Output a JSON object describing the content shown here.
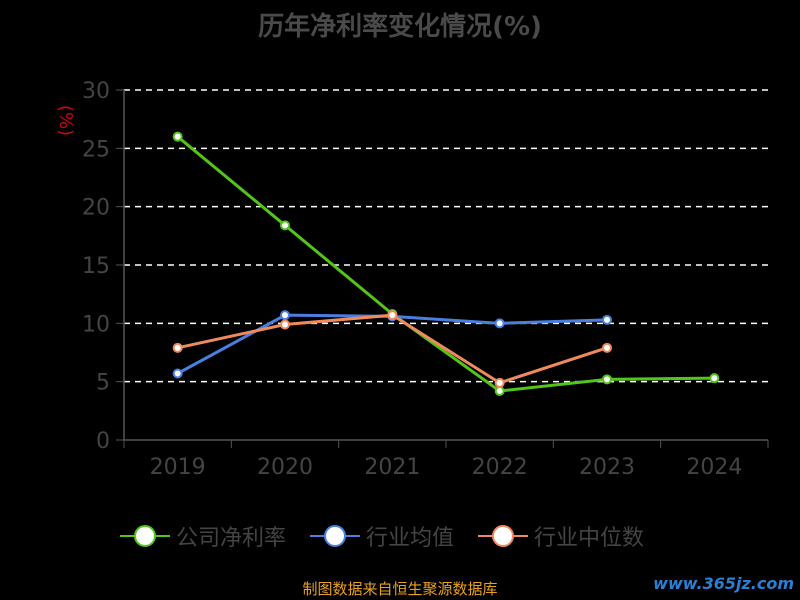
{
  "title": "历年净利率变化情况(%)",
  "source": "制图数据来自恒生聚源数据库",
  "watermark": "www.365jz.com",
  "chart_data": {
    "type": "line",
    "unit_label": "(%)",
    "categories": [
      "2019",
      "2020",
      "2021",
      "2022",
      "2023",
      "2024"
    ],
    "ylim": [
      0,
      30
    ],
    "yticks": [
      0,
      5,
      10,
      15,
      20,
      25,
      30
    ],
    "grid": true,
    "legend_position": "bottom",
    "series": [
      {
        "name": "公司净利率",
        "color": "#52c41a",
        "values": [
          26.0,
          18.4,
          10.8,
          4.2,
          5.2,
          5.3
        ]
      },
      {
        "name": "行业均值",
        "color": "#4a7fe0",
        "values": [
          5.7,
          10.7,
          10.6,
          10.0,
          10.3,
          null
        ]
      },
      {
        "name": "行业中位数",
        "color": "#f08a5d",
        "values": [
          7.9,
          9.9,
          10.7,
          4.9,
          7.9,
          null
        ]
      }
    ]
  }
}
